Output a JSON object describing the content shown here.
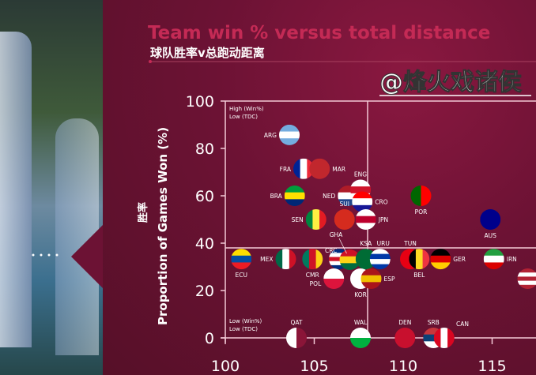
{
  "chart_data": {
    "type": "scatter",
    "title": "Team win % versus total distance",
    "subtitle": "球队胜率v总跑动距离",
    "ylabel": "Proportion of Games Won (%)",
    "ylabel_cn": "胜率",
    "xlabel": "",
    "xlim": [
      100,
      117.5
    ],
    "ylim": [
      0,
      100
    ],
    "xticks": [
      100,
      105,
      110,
      115
    ],
    "yticks": [
      0,
      20,
      40,
      60,
      80,
      100
    ],
    "quadrant_divider": {
      "x": 108,
      "y": 38
    },
    "quadrant_labels": [
      {
        "line1": "High (Win%)",
        "line2": "Low (TDC)"
      },
      {
        "line1": "Low (Win%)",
        "line2": "Low (TDC)"
      }
    ],
    "points": [
      {
        "team": "ARG",
        "x": 103.6,
        "y": 85.7,
        "flag": [
          "#74acdf",
          "#ffffff",
          "#74acdf"
        ],
        "label_pos": "left"
      },
      {
        "team": "FRA",
        "x": 104.4,
        "y": 71.4,
        "flag": [
          "#002395",
          "#ffffff",
          "#ed2939"
        ],
        "dir": "v",
        "label_pos": "left"
      },
      {
        "team": "MAR",
        "x": 105.3,
        "y": 71.4,
        "flag": [
          "#c1272d"
        ],
        "label_pos": "right"
      },
      {
        "team": "BRA",
        "x": 103.9,
        "y": 60,
        "flag": [
          "#009c3b",
          "#ffdf00",
          "#002776"
        ],
        "label_pos": "left"
      },
      {
        "team": "NED",
        "x": 106.9,
        "y": 60,
        "flag": [
          "#ae1c28",
          "#ffffff",
          "#21468b"
        ],
        "label_pos": "left"
      },
      {
        "team": "ENG",
        "x": 107.6,
        "y": 62.5,
        "flag": [
          "#ffffff",
          "#cf142b",
          "#ffffff"
        ],
        "label_pos": "top"
      },
      {
        "team": "CRO",
        "x": 107.7,
        "y": 57.5,
        "flag": [
          "#ff0000",
          "#ffffff",
          "#171796"
        ],
        "label_pos": "right"
      },
      {
        "team": "POR",
        "x": 111,
        "y": 60,
        "flag": [
          "#006600",
          "#ff0000"
        ],
        "dir": "v",
        "label_pos": "bottom"
      },
      {
        "team": "SEN",
        "x": 105.1,
        "y": 50,
        "flag": [
          "#00853f",
          "#fdef42",
          "#e31b23"
        ],
        "dir": "v",
        "label_pos": "left"
      },
      {
        "team": "SUI",
        "x": 106.7,
        "y": 50,
        "flag": [
          "#d52b1e"
        ],
        "label_pos": "top"
      },
      {
        "team": "JPN",
        "x": 107.9,
        "y": 50,
        "flag": [
          "#ffffff",
          "#bc002d",
          "#ffffff"
        ],
        "label_pos": "right"
      },
      {
        "team": "AUS",
        "x": 114.9,
        "y": 50,
        "flag": [
          "#00008b"
        ],
        "label_pos": "bottom"
      },
      {
        "team": "ECU",
        "x": 100.9,
        "y": 33.3,
        "flag": [
          "#ffdd00",
          "#034ea2",
          "#ed1c24"
        ],
        "label_pos": "bottom"
      },
      {
        "team": "MEX",
        "x": 103.4,
        "y": 33.3,
        "flag": [
          "#006847",
          "#ffffff",
          "#ce1126"
        ],
        "dir": "v",
        "label_pos": "left"
      },
      {
        "team": "CMR",
        "x": 104.9,
        "y": 33.3,
        "flag": [
          "#007a5e",
          "#ce1126",
          "#fcd116"
        ],
        "dir": "v",
        "label_pos": "bottom"
      },
      {
        "team": "CRC",
        "x": 106.4,
        "y": 33.3,
        "flag": [
          "#002b7f",
          "#ffffff",
          "#ce1126",
          "#ffffff",
          "#002b7f"
        ],
        "label_pos": "top"
      },
      {
        "team": "GHA",
        "x": 107,
        "y": 33,
        "flag": [
          "#ce1126",
          "#fcd116",
          "#006b3f"
        ],
        "label_pos": "top"
      },
      {
        "team": "KSA",
        "x": 107.9,
        "y": 33.3,
        "flag": [
          "#006c35"
        ],
        "label_pos": "top"
      },
      {
        "team": "URU",
        "x": 108.7,
        "y": 33.3,
        "flag": [
          "#ffffff",
          "#0038a8",
          "#ffffff",
          "#0038a8"
        ],
        "label_pos": "top"
      },
      {
        "team": "TUN",
        "x": 110.4,
        "y": 33.3,
        "flag": [
          "#e70013"
        ],
        "label_pos": "top"
      },
      {
        "team": "BEL",
        "x": 110.9,
        "y": 33.3,
        "flag": [
          "#000000",
          "#fdda24",
          "#ef3340"
        ],
        "dir": "v",
        "label_pos": "bottom"
      },
      {
        "team": "GER",
        "x": 112.1,
        "y": 33.3,
        "flag": [
          "#000000",
          "#dd0000",
          "#ffce00"
        ],
        "label_pos": "right"
      },
      {
        "team": "IRN",
        "x": 115.1,
        "y": 33.3,
        "flag": [
          "#239f40",
          "#ffffff",
          "#da0000"
        ],
        "label_pos": "right"
      },
      {
        "team": "USA",
        "x": 117,
        "y": 25,
        "flag": [
          "#b22234",
          "#ffffff",
          "#b22234",
          "#ffffff",
          "#b22234"
        ],
        "label_pos": "right"
      },
      {
        "team": "POL",
        "x": 106.1,
        "y": 25,
        "flag": [
          "#ffffff",
          "#dc143c"
        ],
        "label_pos": "left"
      },
      {
        "team": "KOR",
        "x": 107.6,
        "y": 25,
        "flag": [
          "#ffffff"
        ],
        "label_pos": "bottom"
      },
      {
        "team": "ESP",
        "x": 108.2,
        "y": 25,
        "flag": [
          "#aa151b",
          "#f1bf00",
          "#aa151b"
        ],
        "label_pos": "right"
      },
      {
        "team": "QAT",
        "x": 104,
        "y": 0,
        "flag": [
          "#ffffff",
          "#8a1538"
        ],
        "dir": "v",
        "label_pos": "top"
      },
      {
        "team": "WAL",
        "x": 107.6,
        "y": 0,
        "flag": [
          "#ffffff",
          "#00b140"
        ],
        "label_pos": "top"
      },
      {
        "team": "DEN",
        "x": 110.1,
        "y": 0,
        "flag": [
          "#c8102e"
        ],
        "label_pos": "top"
      },
      {
        "team": "SRB",
        "x": 111.7,
        "y": 0,
        "flag": [
          "#c6363c",
          "#0c4076",
          "#ffffff"
        ],
        "label_pos": "top"
      },
      {
        "team": "CAN",
        "x": 112.3,
        "y": 0,
        "flag": [
          "#d80621",
          "#ffffff",
          "#d80621"
        ],
        "dir": "v",
        "label_pos": "top"
      }
    ]
  },
  "colors": {
    "title": "#c42a55",
    "background": "#6c1234",
    "axis": "#f3c9d6"
  },
  "watermark": "@烽火戏诸侯"
}
